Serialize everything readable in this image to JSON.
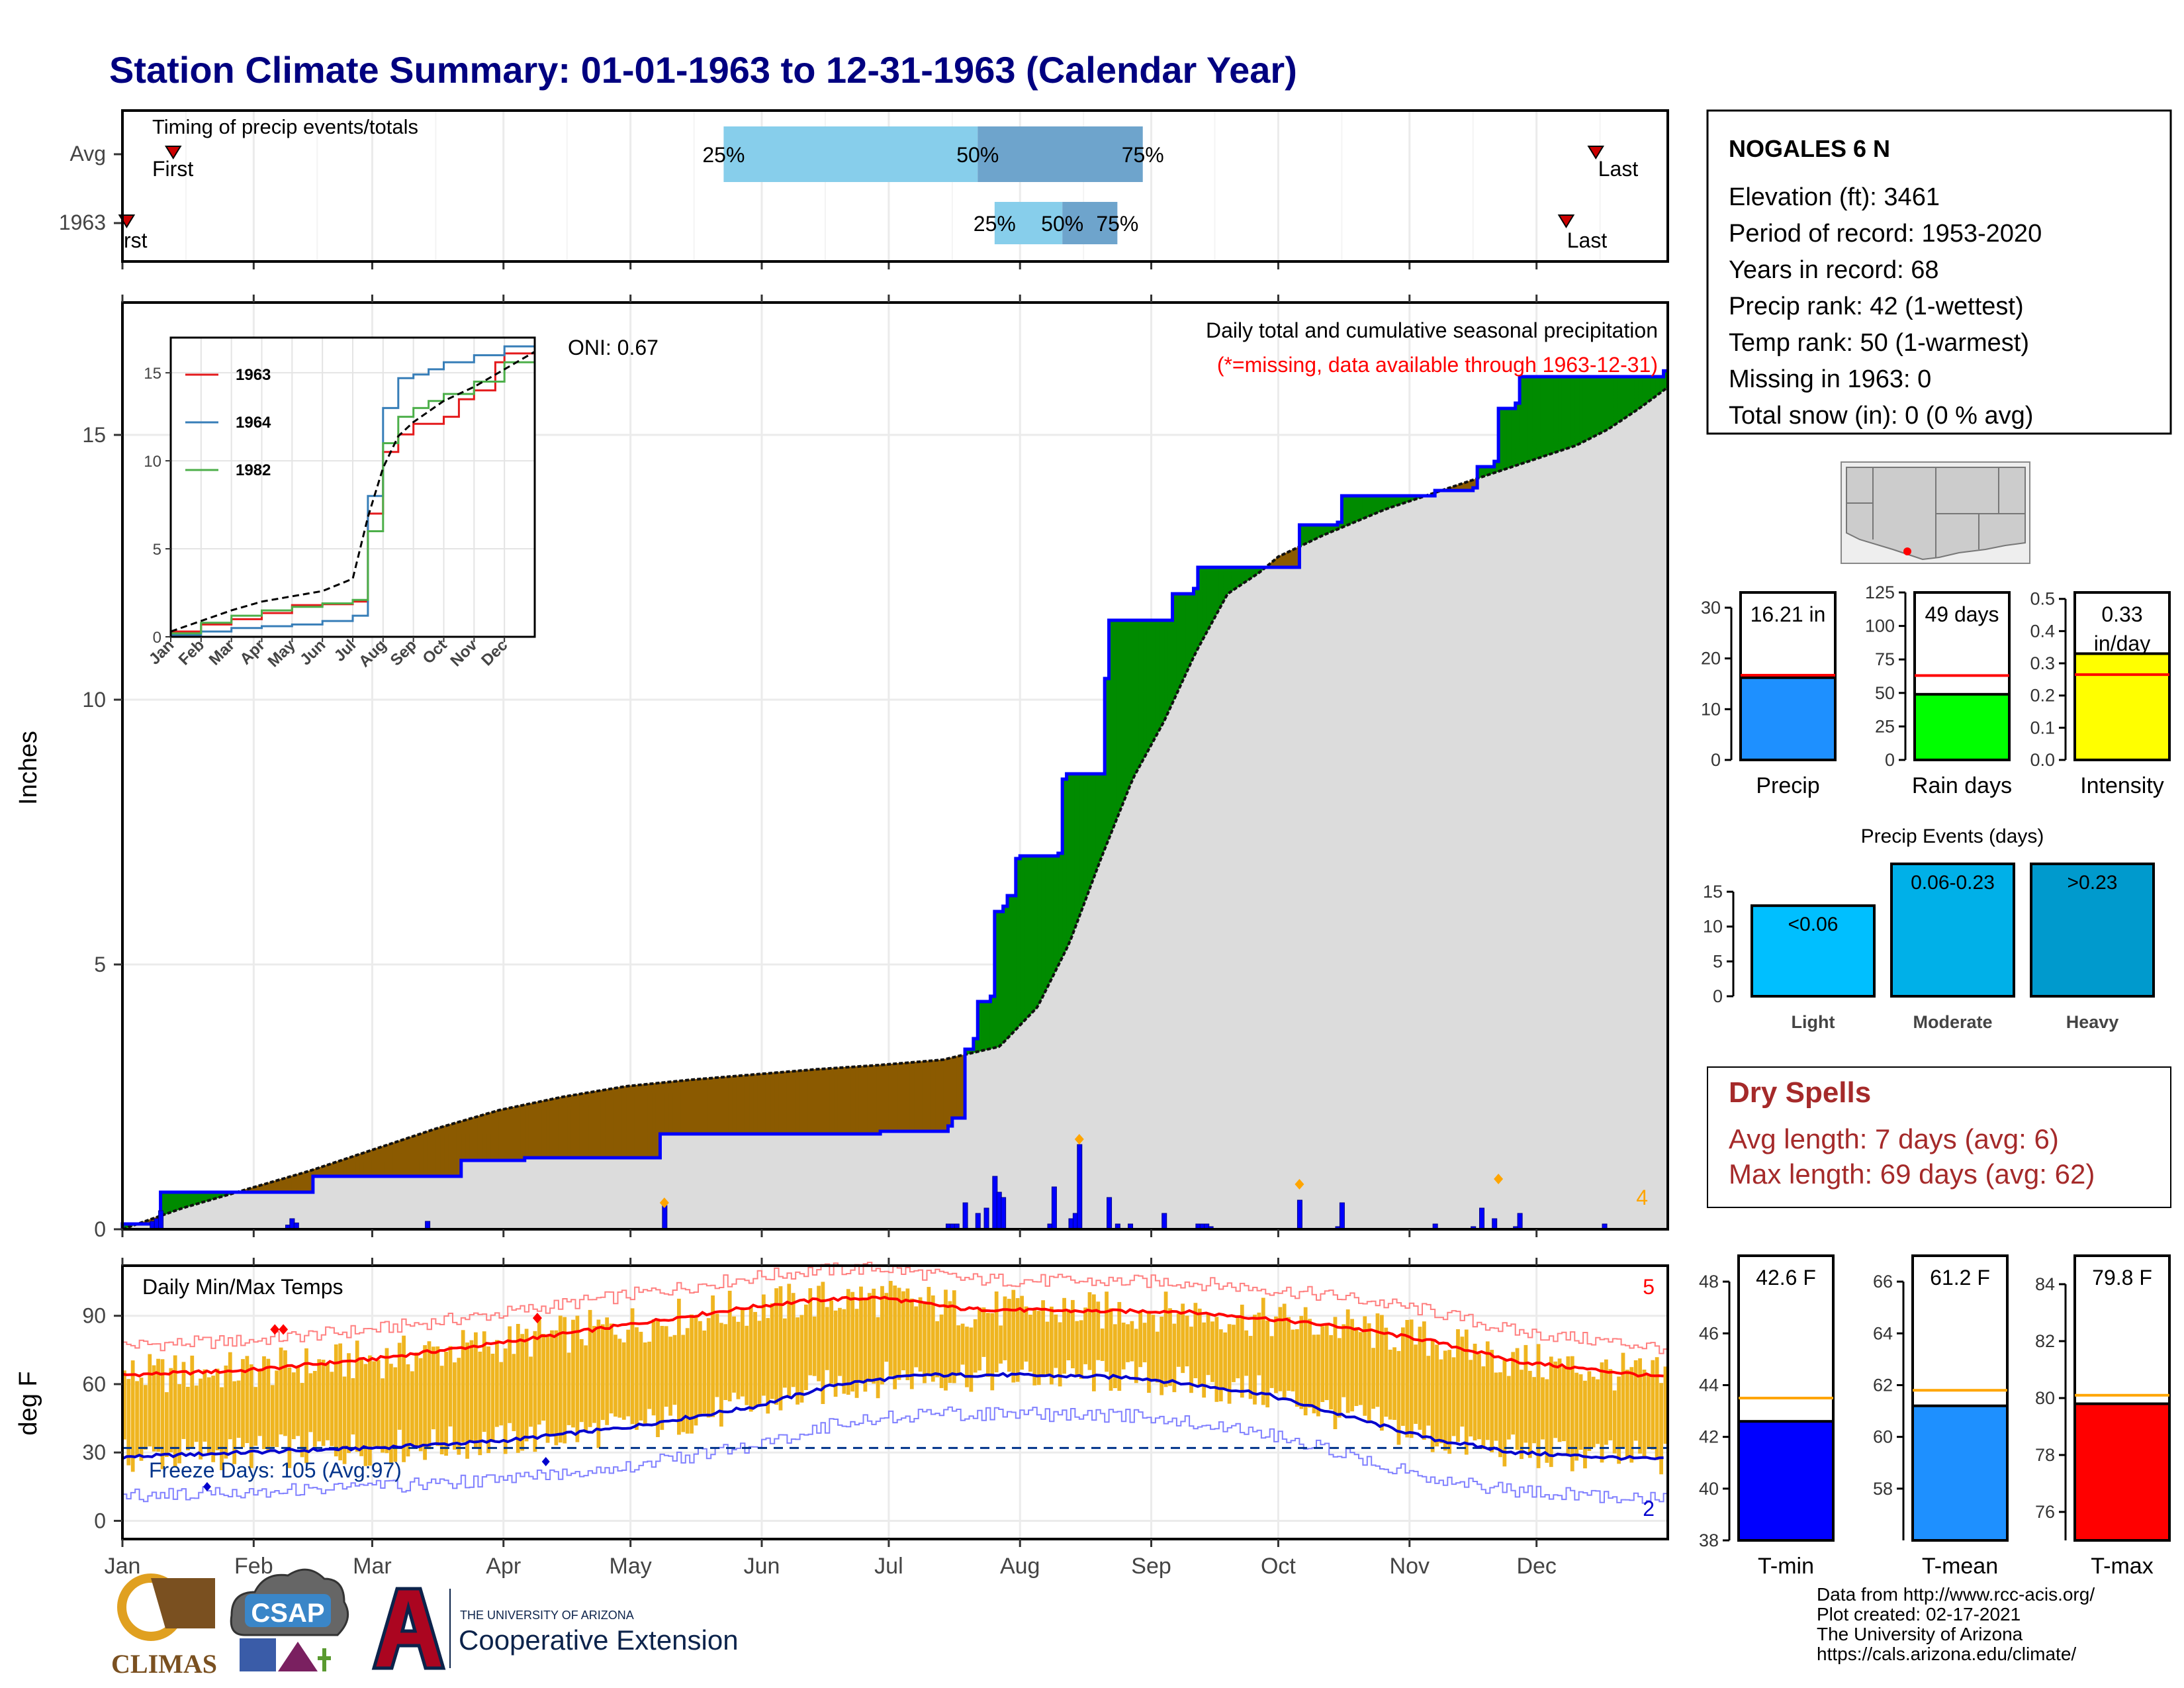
{
  "title": "Station Climate Summary: 01-01-1963 to 12-31-1963 (Calendar Year)",
  "months": [
    "Jan",
    "Feb",
    "Mar",
    "Apr",
    "May",
    "Jun",
    "Jul",
    "Aug",
    "Sep",
    "Oct",
    "Nov",
    "Dec"
  ],
  "timing": {
    "title": "Timing of precip events/totals",
    "rows": [
      "Avg",
      "1963"
    ],
    "first_label": "First",
    "first_label_clipped": "rst",
    "last_label": "Last",
    "pct_labels": [
      "25%",
      "50%",
      "75%"
    ]
  },
  "station": {
    "name": "NOGALES 6 N",
    "lines": [
      "Elevation (ft): 3461",
      "Period of record: 1953-2020",
      "Years in record: 68",
      "Precip rank: 42 (1-wettest)",
      "Temp rank: 50 (1-warmest)",
      "Missing in 1963: 0",
      "Total snow (in): 0 (0 % avg)"
    ]
  },
  "precip_panel": {
    "ylabel": "Inches",
    "oni": "ONI: 0.67",
    "note1": "Daily total and cumulative seasonal precipitation",
    "note2": "(*=missing, data available through 1963-12-31)",
    "count_label": "4",
    "inset_legend": [
      "1963",
      "1964",
      "1982"
    ],
    "inset_months": [
      "Jan",
      "Feb",
      "Mar",
      "Apr",
      "May",
      "Jun",
      "Jul",
      "Aug",
      "Sep",
      "Oct",
      "Nov",
      "Dec"
    ]
  },
  "temp_panel": {
    "ylabel": "deg F",
    "title": "Daily Min/Max Temps",
    "freeze": "Freeze Days: 105 (Avg:97)",
    "hi_count": "5",
    "lo_count": "2"
  },
  "bars_small": [
    {
      "label": "Precip",
      "value_text": "16.21 in"
    },
    {
      "label": "Rain days",
      "value_text": "49 days"
    },
    {
      "label": "Intensity",
      "value_text": "0.33",
      "unit_text": "in/day"
    }
  ],
  "events": {
    "title": "Precip Events (days)",
    "labels": [
      "<0.06",
      "0.06-0.23",
      ">0.23"
    ],
    "cats": [
      "Light",
      "Moderate",
      "Heavy"
    ]
  },
  "dry_spells": {
    "title": "Dry Spells",
    "avg": "Avg length: 7 days (avg: 6)",
    "max": "Max length: 69 days (avg: 62)"
  },
  "temp_bars": [
    {
      "label": "T-min",
      "value_text": "42.6 F"
    },
    {
      "label": "T-mean",
      "value_text": "61.2 F"
    },
    {
      "label": "T-max",
      "value_text": "79.8 F"
    }
  ],
  "footer": {
    "lines": [
      "Data from http://www.rcc-acis.org/",
      "Plot created: 02-17-2021",
      "The University of Arizona",
      "https://cals.arizona.edu/climate/"
    ],
    "logo_climas": "CLIMAS",
    "logo_csap": "CSAP",
    "logo_ua_line1": "THE UNIVERSITY OF ARIZONA",
    "logo_ua_line2": "Cooperative Extension"
  },
  "colors": {
    "title": "#000080",
    "obs_fill": "#0000ff",
    "deficit": "#8b5a00",
    "surplus": "#008b00",
    "avg_fill": "#dcdcdc",
    "tmax": "#ff0000",
    "tmin": "#0000cd",
    "temp_bar": "#efb520",
    "q_light": "#87ceeb",
    "q_dark": "#6ea4cc",
    "dry": "#a52a2a"
  },
  "chart_data": [
    {
      "type": "area",
      "name": "cumulative_precip",
      "ylabel": "Inches",
      "ylim": [
        0,
        17.5
      ],
      "yticks": [
        0,
        5,
        10,
        15
      ],
      "cum_obs": [
        [
          1,
          0.1
        ],
        [
          10,
          0.7
        ],
        [
          45,
          0.7
        ],
        [
          46,
          1.0
        ],
        [
          80,
          1.0
        ],
        [
          81,
          1.3
        ],
        [
          95,
          1.3
        ],
        [
          96,
          1.35
        ],
        [
          127,
          1.35
        ],
        [
          128,
          1.8
        ],
        [
          180,
          1.85
        ],
        [
          196,
          1.95
        ],
        [
          197,
          2.1
        ],
        [
          199,
          2.1
        ],
        [
          200,
          3.4
        ],
        [
          202,
          3.6
        ],
        [
          203,
          4.3
        ],
        [
          206,
          4.4
        ],
        [
          207,
          6.0
        ],
        [
          209,
          6.1
        ],
        [
          210,
          6.3
        ],
        [
          212,
          7.0
        ],
        [
          213,
          7.05
        ],
        [
          222,
          7.1
        ],
        [
          223,
          8.5
        ],
        [
          224,
          8.6
        ],
        [
          232,
          8.6
        ],
        [
          233,
          10.4
        ],
        [
          234,
          11.5
        ],
        [
          248,
          11.5
        ],
        [
          249,
          12.0
        ],
        [
          254,
          12.1
        ],
        [
          255,
          12.5
        ],
        [
          278,
          12.5
        ],
        [
          279,
          13.3
        ],
        [
          288,
          13.35
        ],
        [
          289,
          13.85
        ],
        [
          310,
          13.85
        ],
        [
          311,
          13.95
        ],
        [
          320,
          14.0
        ],
        [
          321,
          14.4
        ],
        [
          325,
          14.5
        ],
        [
          326,
          15.5
        ],
        [
          330,
          15.6
        ],
        [
          331,
          16.1
        ],
        [
          364,
          16.1
        ],
        [
          365,
          16.21
        ]
      ],
      "cum_avg": [
        [
          1,
          0
        ],
        [
          20,
          0.4
        ],
        [
          40,
          0.75
        ],
        [
          60,
          1.1
        ],
        [
          80,
          1.5
        ],
        [
          100,
          1.9
        ],
        [
          120,
          2.25
        ],
        [
          140,
          2.5
        ],
        [
          160,
          2.7
        ],
        [
          180,
          2.82
        ],
        [
          200,
          2.92
        ],
        [
          220,
          3.02
        ],
        [
          240,
          3.1
        ],
        [
          260,
          3.2
        ],
        [
          278,
          3.45
        ],
        [
          290,
          4.2
        ],
        [
          300,
          5.4
        ],
        [
          310,
          7.0
        ],
        [
          320,
          8.5
        ],
        [
          330,
          9.6
        ],
        [
          340,
          10.9
        ],
        [
          350,
          12.0
        ],
        [
          360,
          12.4
        ],
        [
          366,
          12.7
        ],
        [
          380,
          13.1
        ],
        [
          400,
          13.6
        ],
        [
          420,
          14.0
        ],
        [
          440,
          14.4
        ],
        [
          460,
          14.8
        ],
        [
          470,
          15.1
        ],
        [
          480,
          15.5
        ],
        [
          489,
          15.9
        ]
      ],
      "daily": [
        [
          8,
          0.15
        ],
        [
          9,
          0.2
        ],
        [
          10,
          0.35
        ],
        [
          40,
          0.08
        ],
        [
          41,
          0.2
        ],
        [
          42,
          0.12
        ],
        [
          73,
          0.15
        ],
        [
          129,
          0.45
        ],
        [
          196,
          0.1
        ],
        [
          197,
          0.1
        ],
        [
          198,
          0.1
        ],
        [
          200,
          0.5
        ],
        [
          203,
          0.3
        ],
        [
          205,
          0.4
        ],
        [
          207,
          1.0
        ],
        [
          208,
          0.7
        ],
        [
          209,
          0.6
        ],
        [
          220,
          0.1
        ],
        [
          221,
          0.8
        ],
        [
          225,
          0.2
        ],
        [
          226,
          0.3
        ],
        [
          227,
          1.6
        ],
        [
          234,
          0.6
        ],
        [
          236,
          0.1
        ],
        [
          239,
          0.1
        ],
        [
          247,
          0.3
        ],
        [
          255,
          0.1
        ],
        [
          256,
          0.1
        ],
        [
          257,
          0.1
        ],
        [
          258,
          0.05
        ],
        [
          279,
          0.55
        ],
        [
          288,
          0.05
        ],
        [
          289,
          0.5
        ],
        [
          311,
          0.1
        ],
        [
          320,
          0.05
        ],
        [
          322,
          0.4
        ],
        [
          325,
          0.2
        ],
        [
          330,
          0.05
        ],
        [
          331,
          0.3
        ],
        [
          351,
          0.1
        ]
      ],
      "markers": [
        [
          129,
          0.5
        ],
        [
          227,
          1.7
        ],
        [
          279,
          0.85
        ],
        [
          326,
          0.95
        ]
      ]
    },
    {
      "type": "line",
      "name": "inset_cumulative",
      "ylim": [
        0,
        17
      ],
      "series": [
        {
          "name": "1963",
          "values": [
            [
              0,
              0.3
            ],
            [
              1,
              0.7
            ],
            [
              2,
              1.0
            ],
            [
              3,
              1.35
            ],
            [
              4,
              1.8
            ],
            [
              5,
              1.85
            ],
            [
              6,
              2.0
            ],
            [
              6.5,
              7
            ],
            [
              7,
              10.5
            ],
            [
              7.5,
              11.5
            ],
            [
              8,
              12.1
            ],
            [
              9,
              12.5
            ],
            [
              9.5,
              13.5
            ],
            [
              10,
              14.0
            ],
            [
              10.7,
              15.6
            ],
            [
              11,
              16.1
            ],
            [
              12,
              16.2
            ]
          ]
        },
        {
          "name": "1964",
          "values": [
            [
              0,
              0.1
            ],
            [
              1,
              0.3
            ],
            [
              2,
              0.5
            ],
            [
              3,
              0.6
            ],
            [
              4,
              0.7
            ],
            [
              5,
              0.9
            ],
            [
              6,
              1.2
            ],
            [
              6.5,
              8
            ],
            [
              7,
              13.0
            ],
            [
              7.5,
              14.7
            ],
            [
              8,
              14.9
            ],
            [
              8.5,
              15.2
            ],
            [
              9,
              15.6
            ],
            [
              10,
              16.0
            ],
            [
              11,
              16.5
            ],
            [
              12,
              17.0
            ]
          ]
        },
        {
          "name": "1982",
          "values": [
            [
              0,
              0.2
            ],
            [
              1,
              0.8
            ],
            [
              2,
              1.2
            ],
            [
              3,
              1.5
            ],
            [
              4,
              1.7
            ],
            [
              5,
              1.9
            ],
            [
              6,
              2.1
            ],
            [
              6.5,
              6
            ],
            [
              7,
              11.0
            ],
            [
              7.5,
              12.5
            ],
            [
              8,
              13.0
            ],
            [
              8.5,
              13.4
            ],
            [
              9,
              13.8
            ],
            [
              10,
              14.5
            ],
            [
              11,
              15.6
            ],
            [
              12,
              16.2
            ]
          ]
        },
        {
          "name": "avg",
          "values": [
            [
              0,
              0.3
            ],
            [
              1,
              0.9
            ],
            [
              2,
              1.5
            ],
            [
              3,
              2.0
            ],
            [
              4,
              2.3
            ],
            [
              5,
              2.6
            ],
            [
              6,
              3.3
            ],
            [
              6.5,
              6.8
            ],
            [
              7,
              9.6
            ],
            [
              7.5,
              11.4
            ],
            [
              8,
              12.2
            ],
            [
              9,
              13.4
            ],
            [
              10,
              14.2
            ],
            [
              11,
              15.2
            ],
            [
              12,
              16.2
            ]
          ]
        }
      ]
    },
    {
      "type": "bar",
      "name": "timing_quantiles",
      "categories": [
        "Avg",
        "1963"
      ],
      "series": [
        {
          "name": "25%",
          "values": [
            143,
            207
          ]
        },
        {
          "name": "50%",
          "values": [
            203,
            223
          ]
        },
        {
          "name": "75%",
          "values": [
            242,
            236
          ]
        }
      ],
      "first": [
        13,
        2
      ],
      "last": [
        349,
        342
      ]
    },
    {
      "type": "line",
      "name": "daily_temperature",
      "ylabel": "deg F",
      "ylim": [
        -8,
        112
      ],
      "yticks": [
        0,
        30,
        60,
        90
      ],
      "avg_max": [
        [
          1,
          64
        ],
        [
          30,
          66
        ],
        [
          60,
          71
        ],
        [
          90,
          78
        ],
        [
          120,
          86
        ],
        [
          150,
          94
        ],
        [
          165,
          97
        ],
        [
          180,
          98
        ],
        [
          200,
          93
        ],
        [
          230,
          92
        ],
        [
          250,
          92
        ],
        [
          270,
          89
        ],
        [
          290,
          85
        ],
        [
          310,
          79
        ],
        [
          330,
          70
        ],
        [
          350,
          66
        ],
        [
          365,
          63
        ]
      ],
      "avg_min": [
        [
          1,
          28
        ],
        [
          30,
          30
        ],
        [
          60,
          32
        ],
        [
          90,
          35
        ],
        [
          120,
          41
        ],
        [
          150,
          50
        ],
        [
          170,
          60
        ],
        [
          190,
          64
        ],
        [
          210,
          64
        ],
        [
          240,
          63
        ],
        [
          270,
          56
        ],
        [
          290,
          46
        ],
        [
          310,
          36
        ],
        [
          330,
          30
        ],
        [
          350,
          28
        ],
        [
          365,
          27
        ]
      ],
      "freeze_line": 32
    },
    {
      "type": "bar",
      "name": "precip_total",
      "categories": [
        "Precip"
      ],
      "values": [
        16.21
      ],
      "average": 16.7,
      "ylim": [
        0,
        33
      ]
    },
    {
      "type": "bar",
      "name": "rain_days",
      "categories": [
        "Rain days"
      ],
      "values": [
        49
      ],
      "average": 63,
      "ylim": [
        0,
        125
      ]
    },
    {
      "type": "bar",
      "name": "intensity",
      "categories": [
        "Intensity"
      ],
      "values": [
        0.33
      ],
      "average": 0.265,
      "ylim": [
        0,
        0.52
      ]
    },
    {
      "type": "bar",
      "name": "precip_events",
      "categories": [
        "Light",
        "Moderate",
        "Heavy"
      ],
      "values": [
        13,
        19,
        19
      ],
      "ylim": [
        0,
        19
      ]
    },
    {
      "type": "bar",
      "name": "tmin",
      "categories": [
        "T-min"
      ],
      "values": [
        42.6
      ],
      "average": 43.5,
      "ylim": [
        38,
        49
      ]
    },
    {
      "type": "bar",
      "name": "tmean",
      "categories": [
        "T-mean"
      ],
      "values": [
        61.2
      ],
      "average": 61.8,
      "ylim": [
        56,
        67
      ]
    },
    {
      "type": "bar",
      "name": "tmax",
      "categories": [
        "T-max"
      ],
      "values": [
        79.8
      ],
      "average": 80.1,
      "ylim": [
        75,
        85
      ]
    }
  ]
}
